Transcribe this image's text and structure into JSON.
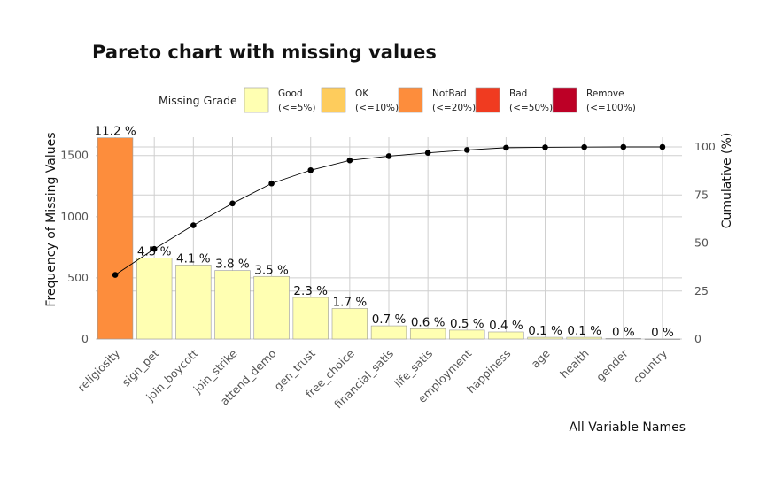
{
  "chart_data": {
    "type": "bar",
    "title": "Pareto chart with missing values",
    "xlabel": "All Variable Names",
    "ylabel": "Frequency of Missing Values",
    "y2label": "Cumulative (%)",
    "ylim": [
      0,
      1650
    ],
    "y_ticks": [
      0,
      500,
      1000,
      1500
    ],
    "y2lim": [
      0,
      100
    ],
    "y2_ticks": [
      0,
      25,
      50,
      75,
      100
    ],
    "categories": [
      "religiosity",
      "sign_pet",
      "join_boycott",
      "join_strike",
      "attend_demo",
      "gen_trust",
      "free_choice",
      "financial_satis",
      "life_satis",
      "employment",
      "happiness",
      "age",
      "health",
      "gender",
      "country"
    ],
    "values": [
      1645,
      662,
      605,
      560,
      512,
      340,
      250,
      108,
      85,
      73,
      58,
      14,
      14,
      4,
      0
    ],
    "percent_labels": [
      "11.2 %",
      "4.5 %",
      "4.1 %",
      "3.8 %",
      "3.5 %",
      "2.3 %",
      "1.7 %",
      "0.7 %",
      "0.6 %",
      "0.5 %",
      "0.4 %",
      "0.1 %",
      "0.1 %",
      "0 %",
      "0 %"
    ],
    "grades": [
      "NotBad",
      "Good",
      "Good",
      "Good",
      "Good",
      "Good",
      "Good",
      "Good",
      "Good",
      "Good",
      "Good",
      "Good",
      "Good",
      "Good",
      "Good"
    ],
    "cumulative": [
      33.4,
      46.9,
      59.2,
      70.6,
      81.0,
      87.9,
      93.0,
      95.2,
      96.9,
      98.4,
      99.6,
      99.8,
      99.9,
      100.0,
      100.0
    ],
    "grid": true,
    "legend": {
      "title": "Missing Grade",
      "placement": "top",
      "items": [
        {
          "name": "Good",
          "range": "(<=5%)",
          "color": "#FFFFB2"
        },
        {
          "name": "OK",
          "range": "(<=10%)",
          "color": "#FECC5C"
        },
        {
          "name": "NotBad",
          "range": "(<=20%)",
          "color": "#FD8D3C"
        },
        {
          "name": "Bad",
          "range": "(<=50%)",
          "color": "#F03B20"
        },
        {
          "name": "Remove",
          "range": "(<=100%)",
          "color": "#BD0026"
        }
      ]
    }
  }
}
